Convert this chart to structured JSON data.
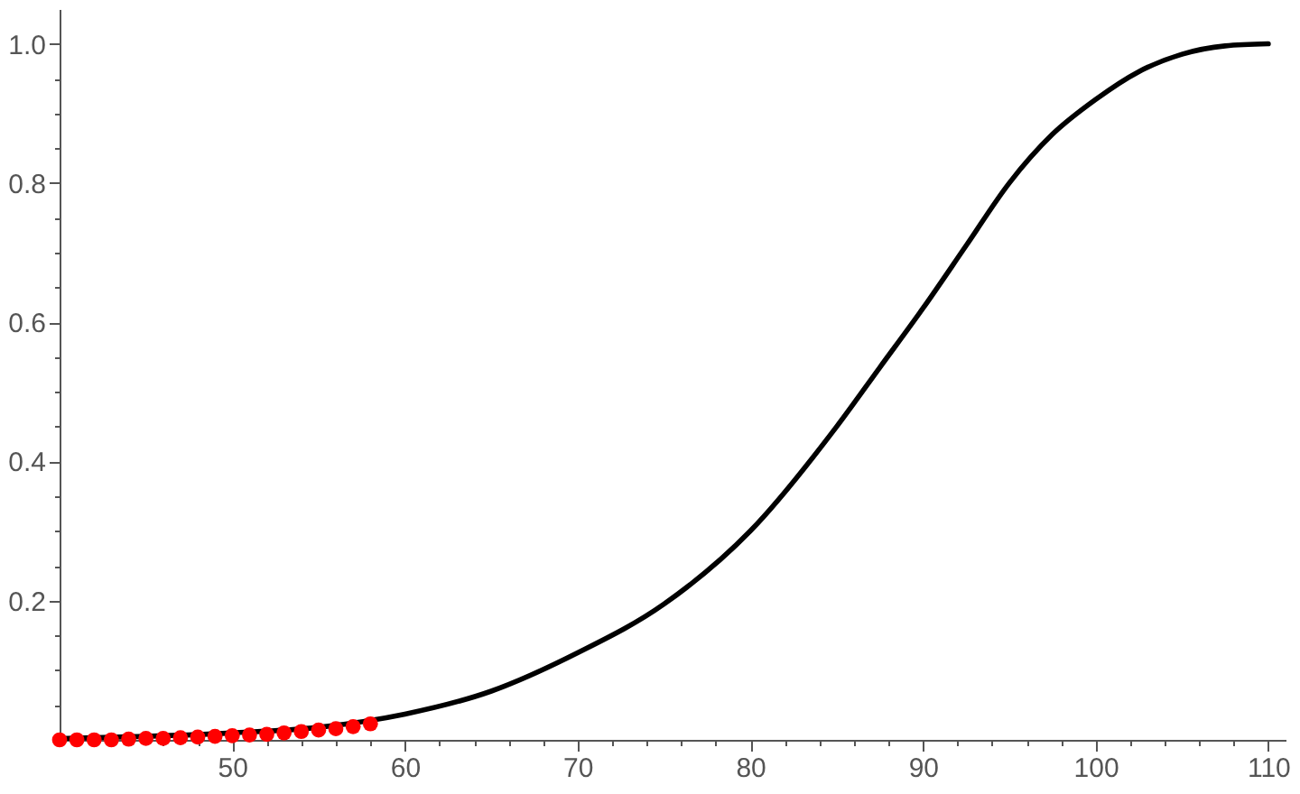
{
  "chart_data": {
    "type": "line",
    "xlim": [
      40,
      111
    ],
    "ylim": [
      0,
      1.05
    ],
    "xticks": [
      {
        "value": 42,
        "label": null
      },
      {
        "value": 44,
        "label": null
      },
      {
        "value": 46,
        "label": null
      },
      {
        "value": 48,
        "label": null
      },
      50,
      {
        "value": 52,
        "label": null
      },
      {
        "value": 54,
        "label": null
      },
      {
        "value": 56,
        "label": null
      },
      {
        "value": 58,
        "label": null
      },
      60,
      {
        "value": 62,
        "label": null
      },
      {
        "value": 64,
        "label": null
      },
      {
        "value": 66,
        "label": null
      },
      {
        "value": 68,
        "label": null
      },
      70,
      {
        "value": 72,
        "label": null
      },
      {
        "value": 74,
        "label": null
      },
      {
        "value": 76,
        "label": null
      },
      {
        "value": 78,
        "label": null
      },
      80,
      {
        "value": 82,
        "label": null
      },
      {
        "value": 84,
        "label": null
      },
      {
        "value": 86,
        "label": null
      },
      {
        "value": 88,
        "label": null
      },
      90,
      {
        "value": 92,
        "label": null
      },
      {
        "value": 94,
        "label": null
      },
      {
        "value": 96,
        "label": null
      },
      {
        "value": 98,
        "label": null
      },
      100,
      {
        "value": 102,
        "label": null
      },
      {
        "value": 104,
        "label": null
      },
      {
        "value": 106,
        "label": null
      },
      {
        "value": 108,
        "label": null
      },
      110
    ],
    "yticks": [
      {
        "value": 0.05,
        "label": null
      },
      {
        "value": 0.1,
        "label": null
      },
      {
        "value": 0.15,
        "label": null
      },
      0.2,
      {
        "value": 0.25,
        "label": null
      },
      {
        "value": 0.3,
        "label": null
      },
      {
        "value": 0.35,
        "label": null
      },
      0.4,
      {
        "value": 0.45,
        "label": null
      },
      {
        "value": 0.5,
        "label": null
      },
      {
        "value": 0.55,
        "label": null
      },
      0.6,
      {
        "value": 0.65,
        "label": null
      },
      {
        "value": 0.7,
        "label": null
      },
      {
        "value": 0.75,
        "label": null
      },
      0.8,
      {
        "value": 0.85,
        "label": null
      },
      {
        "value": 0.9,
        "label": null
      },
      {
        "value": 0.95,
        "label": null
      },
      {
        "value": 1,
        "label": "1.0"
      }
    ],
    "grid": false,
    "series": [
      {
        "color": "#000000",
        "line_style": "solid",
        "marker": "none",
        "x": [
          40,
          45,
          50,
          55,
          60,
          65,
          70,
          75,
          80,
          85,
          87.5,
          90,
          92.5,
          95,
          97.5,
          100,
          102.5,
          105,
          107.5,
          110
        ],
        "values": [
          0.002,
          0.005,
          0.01,
          0.018,
          0.037,
          0.07,
          0.125,
          0.195,
          0.3,
          0.45,
          0.535,
          0.62,
          0.71,
          0.8,
          0.87,
          0.92,
          0.96,
          0.985,
          0.997,
          1.0
        ]
      },
      {
        "type": "scatter",
        "color": "#ff0000",
        "marker": "circle",
        "x": [
          40,
          41,
          42,
          43,
          44,
          45,
          46,
          47,
          48,
          49,
          50,
          51,
          52,
          53,
          54,
          55,
          56,
          57,
          58
        ],
        "values": [
          0,
          0,
          0,
          0,
          0.001,
          0.002,
          0.002,
          0.003,
          0.004,
          0.005,
          0.006,
          0.007,
          0.008,
          0.01,
          0.012,
          0.014,
          0.016,
          0.019,
          0.023
        ]
      }
    ]
  }
}
